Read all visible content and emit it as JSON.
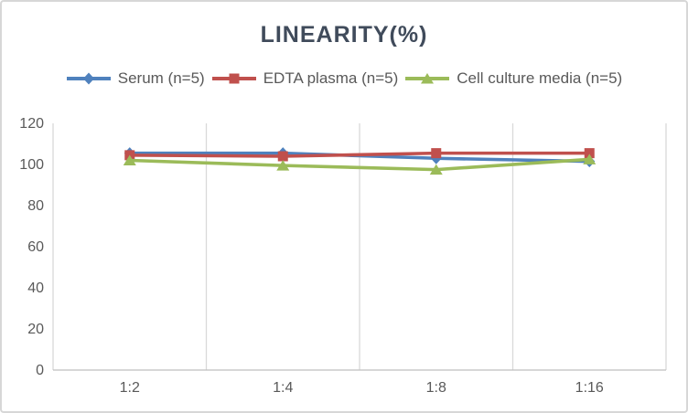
{
  "chart_data": {
    "type": "line",
    "title": "LINEARITY(%)",
    "categories": [
      "1:2",
      "1:4",
      "1:8",
      "1:16"
    ],
    "series": [
      {
        "name": "Serum (n=5)",
        "marker": "diamond",
        "color": "#4F81BD",
        "values": [
          105.5,
          105.5,
          103,
          101.5
        ]
      },
      {
        "name": "EDTA plasma (n=5)",
        "marker": "square",
        "color": "#C0504D",
        "values": [
          104.5,
          104,
          105.5,
          105.5
        ]
      },
      {
        "name": "Cell culture media (n=5)",
        "marker": "triangle",
        "color": "#9BBB59",
        "values": [
          102,
          99.5,
          97.5,
          102.5
        ]
      }
    ],
    "xlabel": "",
    "ylabel": "",
    "ylim": [
      0,
      120
    ],
    "yticks": [
      0,
      20,
      40,
      60,
      80,
      100,
      120
    ],
    "legend_position": "top",
    "grid": "vertical-only"
  },
  "theme": {
    "title_color": "#404B5B",
    "axis_text_color": "#595959",
    "gridline_color": "#D9D9D9",
    "axis_line_color": "#BFBFBF",
    "background": "#FFFFFF",
    "border_color": "#D7D7D7"
  }
}
